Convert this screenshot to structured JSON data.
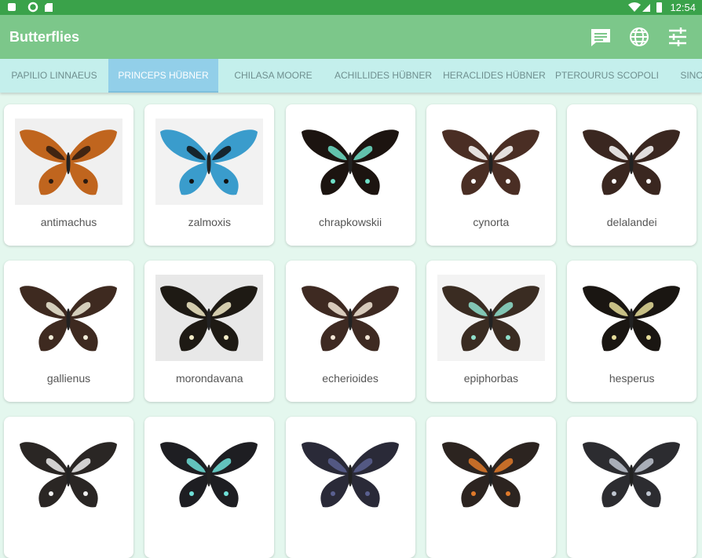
{
  "status_bar": {
    "time": "12:54"
  },
  "app_bar": {
    "title": "Butterflies"
  },
  "tabs": [
    "PAPILIO LINNAEUS",
    "PRINCEPS HÜBNER",
    "CHILASA MOORE",
    "ACHILLIDES HÜBNER",
    "HERACLIDES HÜBNER",
    "PTEROURUS SCOPOLI",
    "SINOP"
  ],
  "selected_tab": 1,
  "cards": [
    "antimachus",
    "zalmoxis",
    "chrapkowskii",
    "cynorta",
    "delalandei",
    "gallienus",
    "morondavana",
    "echerioides",
    "epiphorbas",
    "hesperus"
  ]
}
